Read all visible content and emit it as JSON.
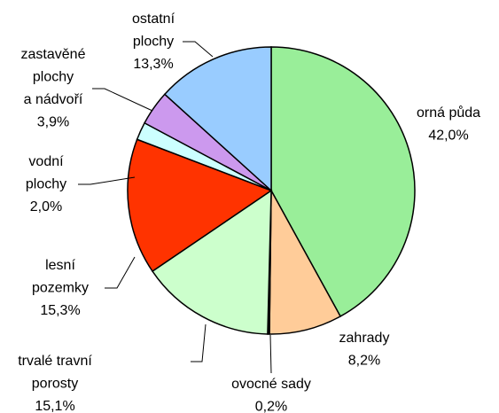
{
  "chart_data": {
    "type": "pie",
    "categories": [
      [
        "orná půda"
      ],
      [
        "zahrady"
      ],
      [
        "ovocné sady"
      ],
      [
        "trvalé travní",
        "porosty"
      ],
      [
        "lesní",
        "pozemky"
      ],
      [
        "vodní",
        "plochy"
      ],
      [
        "zastavěné",
        "plochy",
        "a nádvoří"
      ],
      [
        "ostatní",
        "plochy"
      ]
    ],
    "values": [
      42.0,
      8.2,
      0.2,
      15.1,
      15.3,
      2.0,
      3.9,
      13.3
    ],
    "value_labels": [
      "42,0%",
      "8,2%",
      "0,2%",
      "15,1%",
      "15,3%",
      "2,0%",
      "3,9%",
      "13,3%"
    ],
    "colors": [
      "#99ee99",
      "#ffcc99",
      "#000000",
      "#ccffcc",
      "#ff3300",
      "#ccffff",
      "#cc99ee",
      "#99ccff"
    ]
  }
}
